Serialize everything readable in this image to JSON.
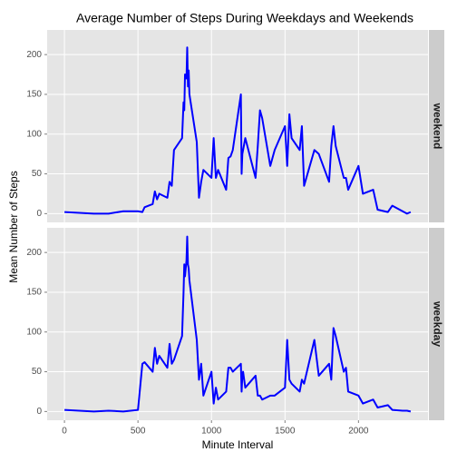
{
  "chart_data": {
    "type": "line",
    "title": "Average Number of Steps During Weekdays and Weekends",
    "x_label": "Minute Interval",
    "y_label": "Mean Number of Steps",
    "x": [
      0,
      100,
      200,
      300,
      400,
      500,
      530,
      545,
      600,
      615,
      630,
      645,
      700,
      715,
      730,
      745,
      800,
      810,
      815,
      820,
      830,
      835,
      840,
      845,
      850,
      900,
      915,
      930,
      945,
      1000,
      1015,
      1030,
      1045,
      1100,
      1115,
      1130,
      1145,
      1200,
      1205,
      1210,
      1215,
      1230,
      1300,
      1315,
      1330,
      1345,
      1400,
      1430,
      1500,
      1515,
      1530,
      1545,
      1600,
      1615,
      1630,
      1700,
      1730,
      1800,
      1815,
      1830,
      1845,
      1900,
      1915,
      1930,
      2000,
      2030,
      2100,
      2130,
      2200,
      2230,
      2300,
      2330,
      2355
    ],
    "series": [
      {
        "name": "weekend",
        "color": "#0000ff",
        "values": [
          2,
          1,
          0,
          0,
          3,
          3,
          2,
          8,
          12,
          28,
          18,
          25,
          20,
          40,
          35,
          80,
          95,
          140,
          130,
          175,
          170,
          209,
          160,
          180,
          150,
          90,
          20,
          40,
          55,
          45,
          95,
          45,
          55,
          30,
          70,
          72,
          80,
          150,
          50,
          75,
          80,
          95,
          45,
          85,
          130,
          120,
          60,
          80,
          110,
          60,
          125,
          95,
          80,
          110,
          35,
          80,
          75,
          40,
          85,
          110,
          85,
          45,
          45,
          30,
          60,
          25,
          30,
          5,
          2,
          10,
          3,
          0,
          2
        ]
      },
      {
        "name": "weekday",
        "color": "#0000ff",
        "values": [
          2,
          1,
          0,
          1,
          0,
          2,
          60,
          62,
          50,
          80,
          60,
          70,
          55,
          85,
          60,
          65,
          95,
          150,
          185,
          170,
          190,
          220,
          185,
          180,
          165,
          90,
          40,
          60,
          20,
          50,
          10,
          30,
          15,
          25,
          55,
          55,
          50,
          60,
          25,
          45,
          50,
          30,
          45,
          20,
          20,
          15,
          20,
          20,
          30,
          90,
          40,
          35,
          25,
          40,
          35,
          90,
          45,
          60,
          40,
          105,
          95,
          50,
          55,
          25,
          20,
          10,
          15,
          5,
          8,
          2,
          1,
          1,
          0
        ]
      }
    ],
    "xlim": [
      -117.75,
      2472.75
    ],
    "xticks": [
      0,
      500,
      1000,
      1500,
      2000
    ],
    "ylim": [
      -11,
      231
    ],
    "yticks": [
      0,
      50,
      100,
      150,
      200
    ],
    "grid": true
  }
}
